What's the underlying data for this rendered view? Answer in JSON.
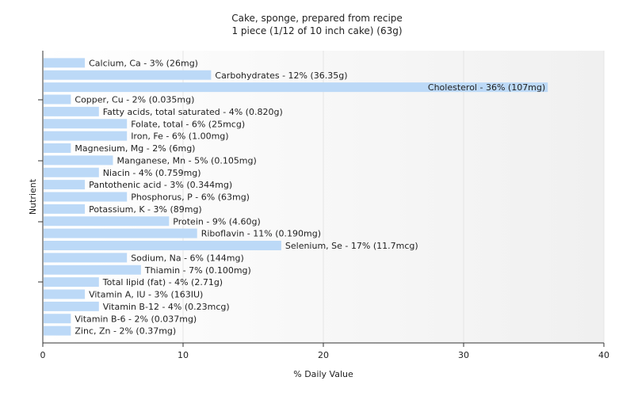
{
  "chart_data": {
    "type": "bar",
    "orientation": "horizontal",
    "title": "Cake, sponge, prepared from recipe",
    "subtitle": "1 piece (1/12 of 10 inch cake) (63g)",
    "xlabel": "% Daily Value",
    "ylabel": "Nutrient",
    "xlim": [
      0,
      40
    ],
    "xticks": [
      0,
      10,
      20,
      30,
      40
    ],
    "grid": true,
    "categories": [
      "Calcium, Ca",
      "Carbohydrates",
      "Cholesterol",
      "Copper, Cu",
      "Fatty acids, total saturated",
      "Folate, total",
      "Iron, Fe",
      "Magnesium, Mg",
      "Manganese, Mn",
      "Niacin",
      "Pantothenic acid",
      "Phosphorus, P",
      "Potassium, K",
      "Protein",
      "Riboflavin",
      "Selenium, Se",
      "Sodium, Na",
      "Thiamin",
      "Total lipid (fat)",
      "Vitamin A, IU",
      "Vitamin B-12",
      "Vitamin B-6",
      "Zinc, Zn"
    ],
    "values": [
      3,
      12,
      36,
      2,
      4,
      6,
      6,
      2,
      5,
      4,
      3,
      6,
      3,
      9,
      11,
      17,
      6,
      7,
      4,
      3,
      4,
      2,
      2
    ],
    "labels": [
      "Calcium, Ca - 3% (26mg)",
      "Carbohydrates - 12% (36.35g)",
      "Cholesterol - 36% (107mg)",
      "Copper, Cu - 2% (0.035mg)",
      "Fatty acids, total saturated - 4% (0.820g)",
      "Folate, total - 6% (25mcg)",
      "Iron, Fe - 6% (1.00mg)",
      "Magnesium, Mg - 2% (6mg)",
      "Manganese, Mn - 5% (0.105mg)",
      "Niacin - 4% (0.759mg)",
      "Pantothenic acid - 3% (0.344mg)",
      "Phosphorus, P - 6% (63mg)",
      "Potassium, K - 3% (89mg)",
      "Protein - 9% (4.60g)",
      "Riboflavin - 11% (0.190mg)",
      "Selenium, Se - 17% (11.7mcg)",
      "Sodium, Na - 6% (144mg)",
      "Thiamin - 7% (0.100mg)",
      "Total lipid (fat) - 4% (2.71g)",
      "Vitamin A, IU - 3% (163IU)",
      "Vitamin B-12 - 4% (0.23mcg)",
      "Vitamin B-6 - 2% (0.037mg)",
      "Zinc, Zn - 2% (0.37mg)"
    ],
    "colors": {
      "bar": "#bcd9f7",
      "grid": "#e4e4e4",
      "axis": "#333333"
    }
  }
}
